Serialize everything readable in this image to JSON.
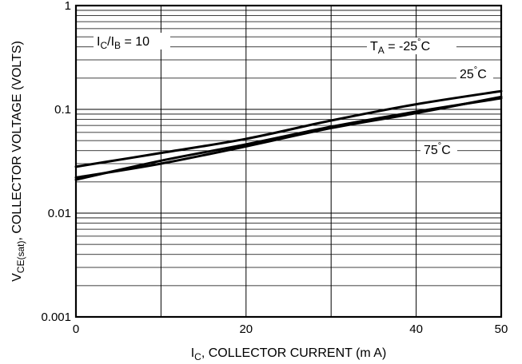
{
  "chart_data": {
    "type": "line",
    "xlabel": "I",
    "xlabel_sub": "C",
    "xlabel_rest": ", COLLECTOR CURRENT (m A)",
    "ylabel": "V",
    "ylabel_sub": "CE(sat)",
    "ylabel_rest": ", COLLECTOR VOLTAGE (VOLTS)",
    "xlim": [
      0,
      50
    ],
    "ylim": [
      0.001,
      1
    ],
    "y_scale": "log",
    "x_ticks": [
      {
        "value": 0,
        "label": "0"
      },
      {
        "value": 20,
        "label": "20"
      },
      {
        "value": 40,
        "label": "40"
      },
      {
        "value": 50,
        "label": "50"
      }
    ],
    "x_gridlines": [
      0,
      10,
      20,
      30,
      40,
      50
    ],
    "y_ticks": [
      {
        "value": 1,
        "label": "1"
      },
      {
        "value": 0.1,
        "label": "0.1"
      },
      {
        "value": 0.01,
        "label": "0.01"
      },
      {
        "value": 0.001,
        "label": "0.001"
      }
    ],
    "grid": true,
    "annotations": {
      "ratio": {
        "p1": "I",
        "s1": "C",
        "mid": "/I",
        "s2": "B",
        "rest": " = 10"
      },
      "ta": {
        "p1": "T",
        "s1": "A",
        "rest": " = -25",
        "deg": "°",
        "unit": "C"
      },
      "t25": {
        "p1": "25",
        "deg": "°",
        "unit": "C"
      },
      "t75": {
        "p1": "75",
        "deg": "°",
        "unit": "C"
      }
    },
    "series": [
      {
        "name": "T_A = -25°C",
        "x": [
          0,
          10,
          20,
          30,
          40,
          50
        ],
        "y": [
          0.021,
          0.032,
          0.046,
          0.068,
          0.095,
          0.128
        ]
      },
      {
        "name": "25°C",
        "x": [
          0,
          10,
          20,
          30,
          40,
          50
        ],
        "y": [
          0.028,
          0.038,
          0.052,
          0.078,
          0.112,
          0.15
        ]
      },
      {
        "name": "75°C",
        "x": [
          0,
          10,
          20,
          30,
          40,
          50
        ],
        "y": [
          0.022,
          0.03,
          0.044,
          0.066,
          0.092,
          0.132
        ]
      }
    ]
  }
}
